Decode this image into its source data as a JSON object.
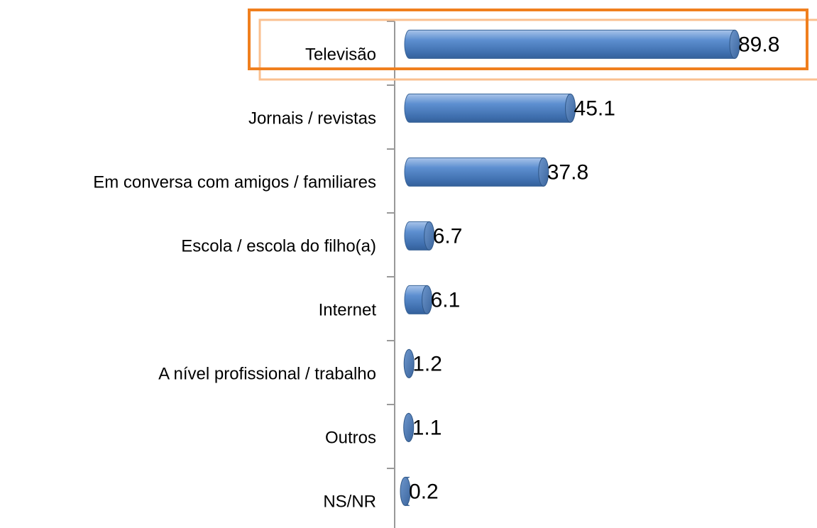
{
  "chart_data": {
    "type": "bar",
    "orientation": "horizontal",
    "categories": [
      "Televisão",
      "Jornais / revistas",
      "Em conversa com amigos / familiares",
      "Escola / escola do filho(a)",
      "Internet",
      "A nível profissional / trabalho",
      "Outros",
      "NS/NR"
    ],
    "values": [
      89.8,
      45.1,
      37.8,
      6.7,
      6.1,
      1.2,
      1.1,
      0.2
    ],
    "color": "#4f81bd"
  }
}
